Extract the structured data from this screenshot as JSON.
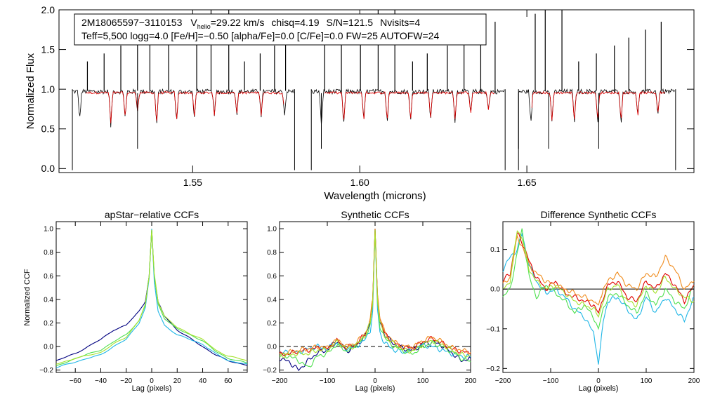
{
  "header": {
    "object_id": "2M18065597−3110153",
    "v_symbol": "V",
    "v_subscript": "helio",
    "v_value": "=29.22 km/s",
    "chisq": "chisq=4.19",
    "sn": "S/N=121.5",
    "nvisits": "Nvisits=4",
    "line2": "Teff=5,500 logg=4.0 [Fe/H]=−0.50 [alpha/Fe]=0.0 [C/Fe]=0.0 FW=25 AUTOFW=24"
  },
  "chart_data": [
    {
      "id": "spectrum",
      "type": "line",
      "title": "",
      "xlabel": "Wavelength (microns)",
      "ylabel": "Normalized Flux",
      "xlim": [
        1.51,
        1.7
      ],
      "ylim": [
        -0.05,
        2.0
      ],
      "xticks": [
        1.55,
        1.6,
        1.65
      ],
      "xtick_labels": [
        "1.55",
        "1.60",
        "1.65"
      ],
      "yticks": [
        0.0,
        0.5,
        1.0,
        1.5,
        2.0
      ],
      "ytick_labels": [
        "0.0",
        "0.5",
        "1.0",
        "1.5",
        "2.0"
      ],
      "chips": [
        [
          1.514,
          1.5805
        ],
        [
          1.5855,
          1.6435
        ],
        [
          1.6475,
          1.6945
        ]
      ],
      "spikes_up": [
        1.5185,
        1.5235,
        1.5285,
        1.5335,
        1.5372,
        1.5428,
        1.5512,
        1.5555,
        1.5608,
        1.5655,
        1.5702,
        1.5745,
        1.5778,
        1.5895,
        1.5945,
        1.6002,
        1.6055,
        1.6105,
        1.6158,
        1.6202,
        1.6262,
        1.6312,
        1.6362,
        1.6405,
        1.6525,
        1.6555,
        1.6605,
        1.6655,
        1.6708,
        1.6762,
        1.6805,
        1.6855,
        1.6902
      ],
      "dips": [
        1.5162,
        1.5255,
        1.5298,
        1.5335,
        1.5392,
        1.5452,
        1.5505,
        1.5565,
        1.5632,
        1.5705,
        1.5775,
        1.5885,
        1.5952,
        1.6012,
        1.6082,
        1.6152,
        1.6212,
        1.6285,
        1.6332,
        1.6385,
        1.6512,
        1.6575,
        1.6642,
        1.6712,
        1.6782,
        1.6832,
        1.6892
      ],
      "series": [
        {
          "name": "observed",
          "color": "#000000"
        },
        {
          "name": "model",
          "color": "#e00000"
        }
      ]
    },
    {
      "id": "apstar_ccf",
      "type": "line",
      "title": "apStar−relative CCFs",
      "xlabel": "Lag (pixels)",
      "ylabel": "Normalized CCF",
      "xlim": [
        -75,
        75
      ],
      "ylim": [
        -0.22,
        1.06
      ],
      "xticks": [
        -60,
        -40,
        -20,
        0,
        20,
        40,
        60
      ],
      "xtick_labels": [
        "−60",
        "−40",
        "−20",
        "0",
        "20",
        "40",
        "60"
      ],
      "yticks": [
        -0.2,
        0.0,
        0.2,
        0.4,
        0.6,
        0.8,
        1.0
      ],
      "ytick_labels": [
        "−0.2",
        "0.0",
        "0.2",
        "0.4",
        "0.6",
        "0.8",
        "1.0"
      ],
      "series": [
        {
          "name": "visit1",
          "color": "#000080",
          "x": [
            -75,
            -60,
            -40,
            -30,
            -20,
            -10,
            -5,
            -2,
            0,
            2,
            5,
            10,
            20,
            30,
            40,
            50,
            60,
            75
          ],
          "y": [
            -0.12,
            -0.06,
            0.06,
            0.14,
            0.18,
            0.3,
            0.38,
            0.6,
            0.99,
            0.6,
            0.38,
            0.26,
            0.14,
            0.07,
            0.0,
            -0.07,
            -0.12,
            -0.16
          ]
        },
        {
          "name": "visit2",
          "color": "#1fb6e6",
          "x": [
            -75,
            -60,
            -40,
            -30,
            -20,
            -10,
            -5,
            -2,
            0,
            2,
            5,
            10,
            20,
            30,
            40,
            50,
            60,
            75
          ],
          "y": [
            -0.18,
            -0.13,
            -0.07,
            0.0,
            0.06,
            0.2,
            0.33,
            0.58,
            1.0,
            0.55,
            0.3,
            0.18,
            0.1,
            0.06,
            0.02,
            -0.06,
            -0.12,
            -0.15
          ]
        },
        {
          "name": "visit3",
          "color": "#50e050",
          "x": [
            -75,
            -60,
            -40,
            -30,
            -20,
            -10,
            -5,
            -2,
            0,
            2,
            5,
            10,
            20,
            30,
            40,
            50,
            60,
            75
          ],
          "y": [
            -0.17,
            -0.1,
            -0.03,
            0.04,
            0.1,
            0.22,
            0.35,
            0.6,
            0.99,
            0.6,
            0.36,
            0.24,
            0.15,
            0.1,
            0.05,
            -0.04,
            -0.1,
            -0.14
          ]
        },
        {
          "name": "visit4",
          "color": "#a6e22e",
          "x": [
            -75,
            -60,
            -40,
            -30,
            -20,
            -10,
            -5,
            -2,
            0,
            2,
            5,
            10,
            20,
            30,
            40,
            50,
            60,
            75
          ],
          "y": [
            -0.15,
            -0.1,
            -0.05,
            0.02,
            0.08,
            0.22,
            0.36,
            0.6,
            0.99,
            0.62,
            0.38,
            0.26,
            0.16,
            0.11,
            0.06,
            -0.03,
            -0.08,
            -0.12
          ]
        }
      ]
    },
    {
      "id": "synthetic_ccf",
      "type": "line",
      "title": "Synthetic CCFs",
      "xlabel": "Lag (pixels)",
      "ylabel": "",
      "xlim": [
        -200,
        200
      ],
      "ylim": [
        -0.22,
        1.06
      ],
      "xticks": [
        -200,
        -100,
        0,
        100,
        200
      ],
      "xtick_labels": [
        "−200",
        "−100",
        "0",
        "100",
        "200"
      ],
      "yticks": [
        -0.2,
        0.0,
        0.2,
        0.4,
        0.6,
        0.8,
        1.0
      ],
      "ytick_labels": [
        "−0.2",
        "0.0",
        "0.2",
        "0.4",
        "0.6",
        "0.8",
        "1.0"
      ],
      "hline": 0.0,
      "series": [
        {
          "name": "s1",
          "color": "#000080",
          "x": [
            -200,
            -180,
            -160,
            -140,
            -120,
            -100,
            -80,
            -60,
            -40,
            -20,
            -10,
            -5,
            0,
            5,
            10,
            20,
            40,
            60,
            80,
            100,
            120,
            140,
            160,
            180,
            200
          ],
          "y": [
            -0.1,
            -0.13,
            -0.2,
            -0.12,
            -0.05,
            -0.03,
            0.05,
            -0.04,
            0.0,
            0.1,
            0.2,
            0.38,
            1.0,
            0.42,
            0.22,
            0.1,
            0.02,
            -0.02,
            -0.03,
            0.02,
            0.04,
            0.01,
            -0.05,
            -0.12,
            -0.1
          ]
        },
        {
          "name": "s2",
          "color": "#1fb6e6",
          "x": [
            -200,
            -180,
            -160,
            -140,
            -120,
            -100,
            -80,
            -60,
            -40,
            -20,
            -10,
            -5,
            0,
            5,
            10,
            20,
            40,
            60,
            80,
            100,
            120,
            140,
            160,
            180,
            200
          ],
          "y": [
            -0.06,
            -0.04,
            -0.05,
            -0.02,
            0.0,
            -0.02,
            0.03,
            -0.02,
            0.0,
            0.06,
            0.14,
            0.3,
            0.99,
            0.32,
            0.12,
            0.03,
            -0.03,
            -0.05,
            -0.02,
            0.01,
            0.0,
            -0.03,
            -0.06,
            -0.08,
            -0.09
          ]
        },
        {
          "name": "s3",
          "color": "#50e050",
          "x": [
            -200,
            -180,
            -160,
            -140,
            -120,
            -100,
            -80,
            -60,
            -40,
            -20,
            -10,
            -5,
            0,
            5,
            10,
            20,
            40,
            60,
            80,
            100,
            120,
            140,
            160,
            180,
            200
          ],
          "y": [
            -0.08,
            -0.08,
            -0.12,
            -0.18,
            -0.08,
            -0.06,
            0.02,
            -0.04,
            0.01,
            0.09,
            0.19,
            0.36,
            0.99,
            0.38,
            0.18,
            0.07,
            0.0,
            -0.04,
            -0.06,
            0.0,
            0.03,
            0.0,
            -0.04,
            -0.1,
            -0.13
          ]
        },
        {
          "name": "s4",
          "color": "#e00000",
          "x": [
            -200,
            -180,
            -160,
            -140,
            -120,
            -100,
            -80,
            -60,
            -40,
            -20,
            -10,
            -5,
            0,
            5,
            10,
            20,
            40,
            60,
            80,
            100,
            120,
            140,
            160,
            180,
            200
          ],
          "y": [
            -0.07,
            -0.06,
            -0.04,
            -0.03,
            -0.01,
            -0.02,
            0.05,
            -0.01,
            0.02,
            0.11,
            0.22,
            0.4,
            1.0,
            0.44,
            0.24,
            0.11,
            0.03,
            -0.01,
            -0.01,
            0.04,
            0.07,
            0.03,
            -0.02,
            -0.04,
            -0.06
          ]
        },
        {
          "name": "s5",
          "color": "#f08c1e",
          "x": [
            -200,
            -180,
            -160,
            -140,
            -120,
            -100,
            -80,
            -60,
            -40,
            -20,
            -10,
            -5,
            0,
            5,
            10,
            20,
            40,
            60,
            80,
            100,
            120,
            140,
            160,
            180,
            200
          ],
          "y": [
            -0.06,
            -0.05,
            -0.03,
            -0.02,
            0.0,
            -0.01,
            0.06,
            0.0,
            0.03,
            0.12,
            0.23,
            0.41,
            1.0,
            0.45,
            0.25,
            0.12,
            0.04,
            0.0,
            0.0,
            0.05,
            0.08,
            0.04,
            -0.01,
            -0.03,
            -0.05
          ]
        },
        {
          "name": "s6",
          "color": "#a6e22e",
          "x": [
            -200,
            -180,
            -160,
            -140,
            -120,
            -100,
            -80,
            -60,
            -40,
            -20,
            -10,
            -5,
            0,
            5,
            10,
            20,
            40,
            60,
            80,
            100,
            120,
            140,
            160,
            180,
            200
          ],
          "y": [
            -0.08,
            -0.07,
            -0.06,
            -0.06,
            -0.03,
            -0.03,
            0.04,
            -0.02,
            0.01,
            0.1,
            0.2,
            0.37,
            0.99,
            0.4,
            0.2,
            0.09,
            0.02,
            -0.03,
            -0.04,
            0.02,
            0.05,
            0.02,
            -0.03,
            -0.07,
            -0.08
          ]
        }
      ]
    },
    {
      "id": "diff_ccf",
      "type": "line",
      "title": "Difference Synthetic CCFs",
      "xlabel": "Lag (pixels)",
      "ylabel": "",
      "xlim": [
        -200,
        200
      ],
      "ylim": [
        -0.21,
        0.17
      ],
      "xticks": [
        -200,
        -100,
        0,
        100,
        200
      ],
      "xtick_labels": [
        "−200",
        "−100",
        "0",
        "100",
        "200"
      ],
      "yticks": [
        -0.2,
        -0.1,
        0.0,
        0.1
      ],
      "ytick_labels": [
        "−0.2",
        "−0.1",
        "0.0",
        "0.1"
      ],
      "hline": 0.0,
      "series": [
        {
          "name": "d1",
          "color": "#1fb6e6",
          "x": [
            -200,
            -185,
            -170,
            -160,
            -145,
            -130,
            -110,
            -90,
            -70,
            -50,
            -30,
            -10,
            0,
            10,
            20,
            40,
            60,
            80,
            100,
            120,
            140,
            160,
            180,
            200
          ],
          "y": [
            0.05,
            0.08,
            0.1,
            0.14,
            0.06,
            0.02,
            -0.01,
            0.0,
            -0.02,
            -0.05,
            -0.07,
            -0.11,
            -0.19,
            -0.08,
            -0.03,
            -0.02,
            -0.05,
            -0.08,
            -0.02,
            -0.06,
            -0.02,
            -0.05,
            -0.08,
            -0.02
          ]
        },
        {
          "name": "d2",
          "color": "#50e050",
          "x": [
            -200,
            -185,
            -170,
            -160,
            -145,
            -130,
            -110,
            -90,
            -70,
            -50,
            -30,
            -10,
            0,
            10,
            20,
            40,
            60,
            80,
            100,
            120,
            140,
            160,
            180,
            200
          ],
          "y": [
            -0.02,
            0.0,
            0.09,
            0.15,
            0.03,
            -0.02,
            0.01,
            -0.01,
            -0.03,
            -0.06,
            -0.04,
            -0.07,
            -0.1,
            -0.05,
            -0.02,
            -0.01,
            -0.04,
            -0.06,
            -0.01,
            -0.04,
            0.0,
            -0.03,
            -0.05,
            0.01
          ]
        },
        {
          "name": "d3",
          "color": "#e00000",
          "x": [
            -200,
            -185,
            -170,
            -160,
            -145,
            -130,
            -110,
            -90,
            -70,
            -50,
            -30,
            -10,
            0,
            10,
            20,
            40,
            60,
            80,
            100,
            120,
            140,
            160,
            180,
            200
          ],
          "y": [
            0.02,
            0.04,
            0.14,
            0.12,
            0.07,
            0.03,
            0.0,
            0.02,
            -0.01,
            -0.02,
            -0.03,
            -0.04,
            -0.06,
            -0.02,
            0.01,
            0.02,
            -0.02,
            -0.03,
            0.02,
            0.0,
            0.04,
            0.01,
            -0.03,
            0.01
          ]
        },
        {
          "name": "d4",
          "color": "#f08c1e",
          "x": [
            -200,
            -185,
            -170,
            -160,
            -145,
            -130,
            -110,
            -90,
            -70,
            -50,
            -30,
            -10,
            0,
            10,
            20,
            40,
            60,
            80,
            100,
            120,
            140,
            160,
            180,
            200
          ],
          "y": [
            0.01,
            0.03,
            0.13,
            0.11,
            0.06,
            0.04,
            0.02,
            0.01,
            0.0,
            -0.01,
            -0.02,
            -0.03,
            -0.04,
            0.0,
            0.02,
            0.04,
            0.01,
            0.0,
            0.04,
            0.03,
            0.08,
            0.05,
            0.0,
            0.02
          ]
        },
        {
          "name": "d5",
          "color": "#a6e22e",
          "x": [
            -200,
            -185,
            -170,
            -160,
            -145,
            -130,
            -110,
            -90,
            -70,
            -50,
            -30,
            -10,
            0,
            10,
            20,
            40,
            60,
            80,
            100,
            120,
            140,
            160,
            180,
            200
          ],
          "y": [
            0.0,
            0.02,
            0.15,
            0.13,
            0.05,
            0.02,
            0.0,
            0.01,
            -0.01,
            -0.03,
            -0.04,
            -0.05,
            -0.07,
            -0.03,
            0.0,
            0.01,
            -0.03,
            -0.04,
            0.01,
            -0.01,
            0.03,
            0.0,
            -0.02,
            -0.03
          ]
        }
      ]
    }
  ]
}
